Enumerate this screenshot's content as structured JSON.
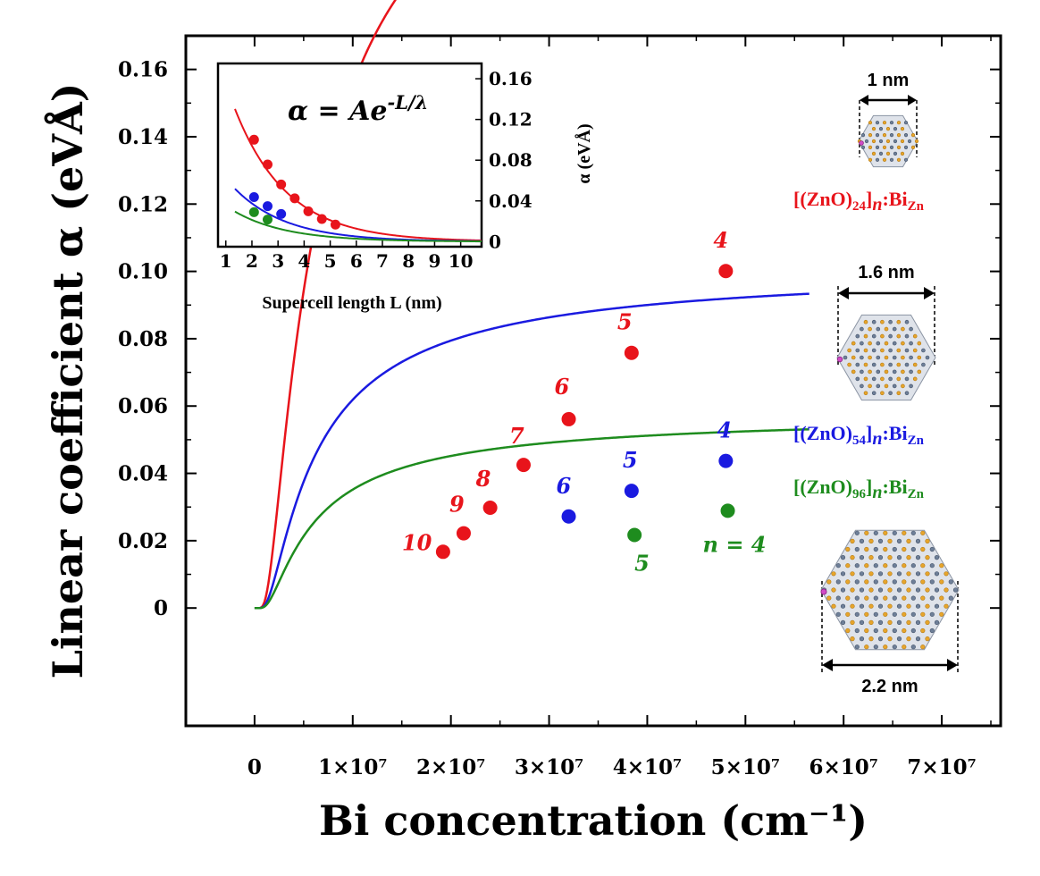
{
  "chart_data": {
    "type": "line",
    "xlabel": "Bi concentration (cm⁻¹)",
    "ylabel": "Linear coefficient α (eVÅ)",
    "xlim": [
      -7000000,
      76000000
    ],
    "ylim": [
      -0.035,
      0.17
    ],
    "x_ticks": [
      {
        "v": 0,
        "label": "0"
      },
      {
        "v": 10000000,
        "label": "1×10⁷"
      },
      {
        "v": 20000000,
        "label": "2×10⁷"
      },
      {
        "v": 30000000,
        "label": "3×10⁷"
      },
      {
        "v": 40000000,
        "label": "4×10⁷"
      },
      {
        "v": 50000000,
        "label": "5×10⁷"
      },
      {
        "v": 60000000,
        "label": "6×10⁷"
      },
      {
        "v": 70000000,
        "label": "7×10⁷"
      }
    ],
    "y_ticks": [
      {
        "v": 0,
        "label": "0"
      },
      {
        "v": 0.02,
        "label": "0.02"
      },
      {
        "v": 0.04,
        "label": "0.04"
      },
      {
        "v": 0.06,
        "label": "0.06"
      },
      {
        "v": 0.08,
        "label": "0.08"
      },
      {
        "v": 0.1,
        "label": "0.10"
      },
      {
        "v": 0.12,
        "label": "0.12"
      },
      {
        "v": 0.14,
        "label": "0.14"
      },
      {
        "v": 0.16,
        "label": "0.16"
      }
    ],
    "series": [
      {
        "name": "[(ZnO)24]n:BiZn",
        "label_parts": [
          "[(ZnO)",
          "24",
          "]",
          "n",
          ":Bi",
          "Zn"
        ],
        "color": "#e8141b",
        "A": 0.256,
        "lambda_nm": 2.0,
        "x_max": 56500000,
        "points": [
          {
            "n": "10",
            "x": 19200000,
            "y": 0.0167
          },
          {
            "n": "9",
            "x": 21300000,
            "y": 0.0222
          },
          {
            "n": "8",
            "x": 24000000,
            "y": 0.0298
          },
          {
            "n": "7",
            "x": 27400000,
            "y": 0.0425
          },
          {
            "n": "6",
            "x": 32000000,
            "y": 0.0561
          },
          {
            "n": "5",
            "x": 38400000,
            "y": 0.0758
          },
          {
            "n": "4",
            "x": 48000000,
            "y": 0.1001
          }
        ]
      },
      {
        "name": "[(ZnO)54]n:BiZn",
        "label_parts": [
          "[(ZnO)",
          "54",
          "]",
          "n",
          ":Bi",
          "Zn"
        ],
        "color": "#1a1ae0",
        "A": 0.102,
        "lambda_nm": 2.0,
        "x_max": 56500000,
        "points": [
          {
            "n": "6",
            "x": 32000000,
            "y": 0.0272
          },
          {
            "n": "5",
            "x": 38400000,
            "y": 0.0348
          },
          {
            "n": "4",
            "x": 48000000,
            "y": 0.0437
          }
        ]
      },
      {
        "name": "[(ZnO)96]n:BiZn",
        "label_parts": [
          "[(ZnO)",
          "96",
          "]",
          "n",
          ":Bi",
          "Zn"
        ],
        "color": "#1e8c1e",
        "A": 0.058,
        "lambda_nm": 2.0,
        "x_max": 56500000,
        "points": [
          {
            "n": "5",
            "x": 38700000,
            "y": 0.0217
          },
          {
            "n": "n = 4",
            "x": 48200000,
            "y": 0.0289
          }
        ]
      }
    ],
    "inset": {
      "formula": "α = Ae",
      "formula_exp": "-L/λ",
      "xlabel": "Supercell length L (nm)",
      "ylabel": "α (eVÅ)",
      "xlim": [
        0.7,
        10.8
      ],
      "ylim": [
        -0.005,
        0.175
      ],
      "x_ticks": [
        1,
        2,
        3,
        4,
        5,
        6,
        7,
        8,
        9,
        10
      ],
      "x_tick_labels": [
        "1",
        "2",
        "3",
        "4",
        "5",
        "6",
        "7",
        "8",
        "9",
        "10"
      ],
      "y_ticks": [
        0,
        0.04,
        0.08,
        0.12,
        0.16
      ],
      "y_tick_labels": [
        "0",
        "0.04",
        "0.08",
        "0.12",
        "0.16"
      ],
      "series": [
        {
          "color": "#e8141b",
          "A": 0.256,
          "lambda": 2.0,
          "L_start": 1.35,
          "points": [
            [
              2.08,
              0.1001
            ],
            [
              2.6,
              0.0758
            ],
            [
              3.12,
              0.0561
            ],
            [
              3.64,
              0.0425
            ],
            [
              4.16,
              0.0298
            ],
            [
              4.68,
              0.0222
            ],
            [
              5.2,
              0.0167
            ]
          ]
        },
        {
          "color": "#1a1ae0",
          "A": 0.102,
          "lambda": 2.0,
          "L_start": 1.35,
          "points": [
            [
              2.08,
              0.0437
            ],
            [
              2.6,
              0.0348
            ],
            [
              3.12,
              0.0272
            ]
          ]
        },
        {
          "color": "#1e8c1e",
          "A": 0.058,
          "lambda": 2.0,
          "L_start": 1.35,
          "points": [
            [
              2.08,
              0.0289
            ],
            [
              2.6,
              0.0217
            ]
          ]
        }
      ]
    }
  },
  "structures": [
    {
      "scale": "1 nm"
    },
    {
      "scale": "1.6 nm"
    },
    {
      "scale": "2.2 nm"
    }
  ]
}
